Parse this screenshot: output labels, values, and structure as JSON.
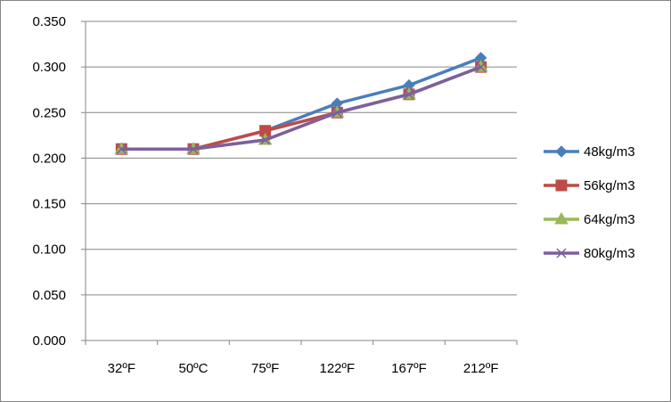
{
  "chart_data": {
    "type": "line",
    "categories": [
      "32ºF",
      "50ºC",
      "75ºF",
      "122ºF",
      "167ºF",
      "212ºF"
    ],
    "ylim": [
      0,
      0.35
    ],
    "yticks": [
      "0.000",
      "0.050",
      "0.100",
      "0.150",
      "0.200",
      "0.250",
      "0.300",
      "0.350"
    ],
    "grid": "horizontal major gridlines",
    "legend_position": "right",
    "series": [
      {
        "name": "48kg/m3",
        "color": "#4a7ebb",
        "marker": "diamond",
        "values": [
          0.21,
          0.21,
          0.23,
          0.26,
          0.28,
          0.31
        ]
      },
      {
        "name": "56kg/m3",
        "color": "#be4b48",
        "marker": "square",
        "values": [
          0.21,
          0.21,
          0.23,
          0.25,
          0.27,
          0.3
        ]
      },
      {
        "name": "64kg/m3",
        "color": "#98b954",
        "marker": "triangle",
        "values": [
          0.21,
          0.21,
          0.22,
          0.25,
          0.27,
          0.3
        ]
      },
      {
        "name": "80kg/m3",
        "color": "#7d5fa0",
        "marker": "x",
        "values": [
          0.21,
          0.21,
          0.22,
          0.25,
          0.27,
          0.3
        ]
      }
    ]
  }
}
